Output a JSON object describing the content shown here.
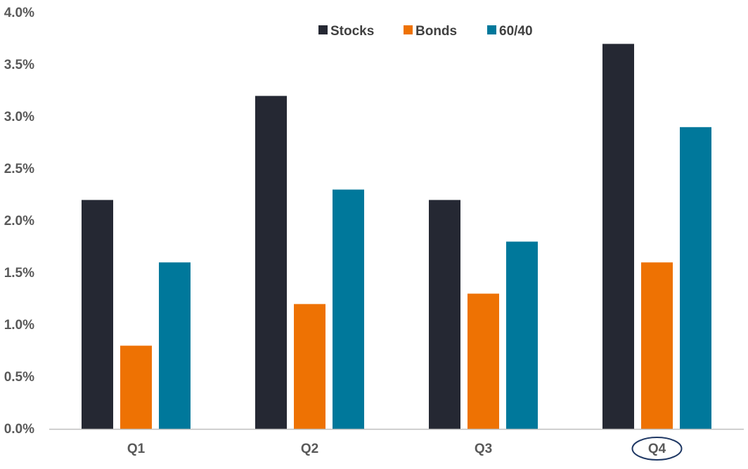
{
  "chart_data": {
    "type": "bar",
    "categories": [
      "Q1",
      "Q2",
      "Q3",
      "Q4"
    ],
    "series": [
      {
        "name": "Stocks",
        "values": [
          2.2,
          3.2,
          2.2,
          3.7
        ],
        "color": "#252833"
      },
      {
        "name": "Bonds",
        "values": [
          0.8,
          1.2,
          1.3,
          1.6
        ],
        "color": "#EE7203"
      },
      {
        "name": "60/40",
        "values": [
          1.6,
          2.3,
          1.8,
          2.9
        ],
        "color": "#00789B"
      }
    ],
    "title": "",
    "xlabel": "",
    "ylabel": "",
    "ylim": [
      0,
      4.0
    ],
    "yticks": [
      0,
      0.5,
      1.0,
      1.5,
      2.0,
      2.5,
      3.0,
      3.5,
      4.0
    ],
    "ytick_labels": [
      "0.0%",
      "0.5%",
      "1.0%",
      "1.5%",
      "2.0%",
      "2.5%",
      "3.0%",
      "3.5%",
      "4.0%"
    ],
    "grid": false,
    "legend_position": "top",
    "highlighted_category": "Q4",
    "highlight_color": "#1F3864",
    "axis_color": "#BFBFBF"
  }
}
